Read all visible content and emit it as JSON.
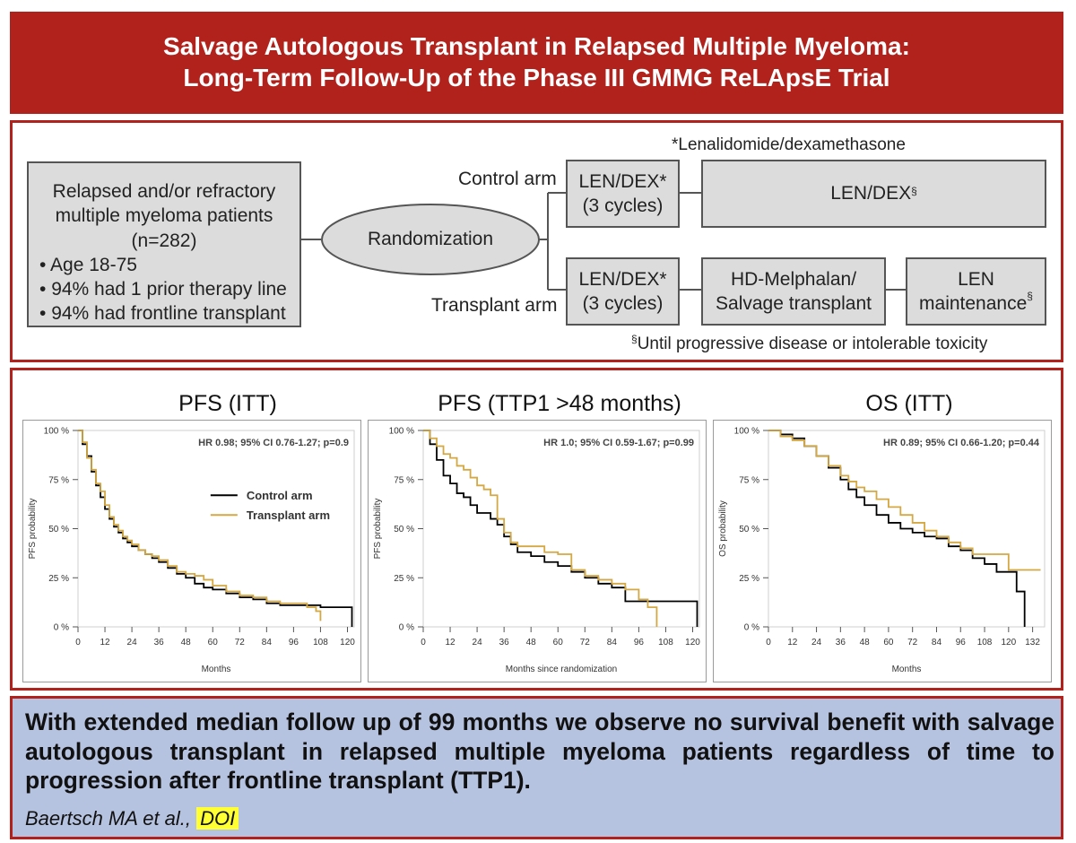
{
  "title": {
    "line1": "Salvage Autologous Transplant in Relapsed Multiple Myeloma:",
    "line2": "Long-Term Follow-Up of the Phase III GMMG ReLApsE Trial"
  },
  "design": {
    "footnote_top": "*Lenalidomide/dexamethasone",
    "patients": {
      "line1": "Relapsed and/or refractory",
      "line2": "multiple myeloma patients",
      "line3": "(n=282)",
      "bullets": [
        "Age 18-75",
        "94% had 1 prior therapy line",
        "94% had frontline transplant"
      ]
    },
    "randomization": "Randomization",
    "control_arm_label": "Control arm",
    "transplant_arm_label": "Transplant arm",
    "control_induction": {
      "line1": "LEN/DEX*",
      "line2": "(3 cycles)"
    },
    "control_continuation": {
      "text": "LEN/DEX",
      "mark": "§"
    },
    "transplant_induction": {
      "line1": "LEN/DEX*",
      "line2": "(3 cycles)"
    },
    "transplant_step": {
      "line1": "HD-Melphalan/",
      "line2": "Salvage transplant"
    },
    "maintenance": {
      "line1": "LEN",
      "line2": "maintenance",
      "mark": "§"
    },
    "footnote_bottom": {
      "mark": "§",
      "text": "Until progressive disease or intolerable toxicity"
    }
  },
  "panel_titles": [
    "PFS (ITT)",
    "PFS (TTP1 >48 months)",
    "OS (ITT)"
  ],
  "chart_data": [
    {
      "type": "line",
      "title": "PFS (ITT)",
      "xlabel": "Months",
      "ylabel": "PFS probability",
      "xlim": [
        0,
        123
      ],
      "ylim": [
        0,
        100
      ],
      "xticks": [
        "0",
        "12",
        "24",
        "36",
        "48",
        "60",
        "72",
        "84",
        "96",
        "108",
        "120"
      ],
      "yticks": [
        "0 %",
        "25 %",
        "50 %",
        "75 %",
        "100 %"
      ],
      "annotation": "HR 0.98; 95% CI 0.76-1.27; p=0.9",
      "legend_position": "center-right",
      "series": [
        {
          "name": "Control arm",
          "color": "#000000",
          "x": [
            0,
            2,
            4,
            6,
            8,
            10,
            12,
            14,
            16,
            18,
            20,
            22,
            24,
            27,
            30,
            33,
            36,
            40,
            44,
            48,
            52,
            56,
            60,
            66,
            72,
            78,
            84,
            90,
            96,
            108,
            114,
            120,
            122,
            122
          ],
          "y": [
            100,
            93,
            87,
            79,
            72,
            66,
            60,
            55,
            51,
            48,
            45,
            43,
            41,
            39,
            37,
            35,
            33,
            30,
            27,
            25,
            22,
            20,
            19,
            17,
            15,
            14,
            12,
            11,
            11,
            10,
            10,
            10,
            10,
            0
          ]
        },
        {
          "name": "Transplant arm",
          "color": "#d4a843",
          "x": [
            0,
            2,
            4,
            6,
            8,
            10,
            12,
            14,
            16,
            18,
            20,
            22,
            24,
            27,
            30,
            33,
            36,
            40,
            44,
            48,
            52,
            56,
            60,
            66,
            72,
            78,
            84,
            90,
            96,
            102,
            106,
            108,
            108
          ],
          "y": [
            100,
            94,
            86,
            80,
            73,
            69,
            62,
            56,
            52,
            49,
            46,
            44,
            42,
            39,
            37,
            36,
            34,
            31,
            28,
            27,
            26,
            24,
            21,
            18,
            16,
            15,
            13,
            12,
            12,
            10,
            8,
            6,
            3
          ]
        }
      ]
    },
    {
      "type": "line",
      "title": "PFS (TTP1 >48 months)",
      "xlabel": "Months since randomization",
      "ylabel": "PFS probability",
      "xlim": [
        0,
        123
      ],
      "ylim": [
        0,
        100
      ],
      "xticks": [
        "0",
        "12",
        "24",
        "36",
        "48",
        "60",
        "72",
        "84",
        "96",
        "108",
        "120"
      ],
      "yticks": [
        "0 %",
        "25 %",
        "50 %",
        "75 %",
        "100 %"
      ],
      "annotation": "HR 1.0; 95% CI 0.59-1.67; p=0.99",
      "series": [
        {
          "name": "Control arm",
          "color": "#000000",
          "x": [
            0,
            3,
            6,
            9,
            12,
            15,
            18,
            21,
            24,
            27,
            30,
            33,
            36,
            39,
            42,
            48,
            54,
            60,
            66,
            72,
            78,
            84,
            90,
            96,
            108,
            120,
            122,
            122
          ],
          "y": [
            100,
            93,
            85,
            77,
            73,
            68,
            66,
            62,
            58,
            58,
            55,
            52,
            46,
            42,
            38,
            36,
            33,
            31,
            28,
            25,
            22,
            20,
            13,
            13,
            13,
            13,
            13,
            0
          ]
        },
        {
          "name": "Transplant arm",
          "color": "#d4a843",
          "x": [
            0,
            3,
            6,
            9,
            12,
            15,
            18,
            21,
            24,
            27,
            30,
            33,
            36,
            39,
            42,
            48,
            54,
            60,
            66,
            72,
            78,
            84,
            90,
            96,
            100,
            104,
            104
          ],
          "y": [
            100,
            96,
            92,
            88,
            86,
            82,
            80,
            76,
            72,
            70,
            67,
            55,
            48,
            43,
            41,
            41,
            38,
            37,
            29,
            26,
            24,
            22,
            19,
            14,
            10,
            10,
            0
          ]
        }
      ]
    },
    {
      "type": "line",
      "title": "OS (ITT)",
      "xlabel": "Months",
      "ylabel": "OS probability",
      "xlim": [
        0,
        138
      ],
      "ylim": [
        0,
        100
      ],
      "xticks": [
        "0",
        "12",
        "24",
        "36",
        "48",
        "60",
        "72",
        "84",
        "96",
        "108",
        "120",
        "132"
      ],
      "yticks": [
        "0 %",
        "25 %",
        "50 %",
        "75 %",
        "100 %"
      ],
      "annotation": "HR 0.89; 95% CI 0.66-1.20; p=0.44",
      "series": [
        {
          "name": "Control arm",
          "color": "#000000",
          "x": [
            0,
            6,
            12,
            18,
            24,
            30,
            36,
            40,
            44,
            48,
            54,
            60,
            66,
            72,
            78,
            84,
            90,
            96,
            102,
            108,
            114,
            120,
            124,
            128,
            128
          ],
          "y": [
            100,
            98,
            96,
            92,
            87,
            81,
            75,
            70,
            66,
            62,
            57,
            53,
            50,
            48,
            46,
            45,
            41,
            39,
            35,
            32,
            28,
            28,
            18,
            18,
            0
          ]
        },
        {
          "name": "Transplant arm",
          "color": "#d4a843",
          "x": [
            0,
            6,
            12,
            18,
            24,
            30,
            36,
            40,
            44,
            48,
            54,
            60,
            66,
            72,
            78,
            84,
            90,
            96,
            102,
            108,
            114,
            120,
            126,
            132,
            136
          ],
          "y": [
            100,
            97,
            95,
            92,
            87,
            82,
            77,
            74,
            71,
            69,
            65,
            61,
            57,
            53,
            49,
            46,
            43,
            40,
            37,
            37,
            37,
            29,
            29,
            29,
            29
          ]
        }
      ]
    }
  ],
  "conclusion": {
    "text": "With extended median follow up of 99 months we observe no survival benefit with salvage autologous transplant in relapsed multiple myeloma patients regardless of time to progression after frontline transplant (TTP1).",
    "citation": "Baertsch MA et al.,",
    "doi": "DOI"
  },
  "colors": {
    "banner": "#b2221d",
    "control": "#000000",
    "transplant": "#d4a843",
    "conclusion_bg": "#b6c3e0",
    "doi_highlight": "#ffff33"
  }
}
